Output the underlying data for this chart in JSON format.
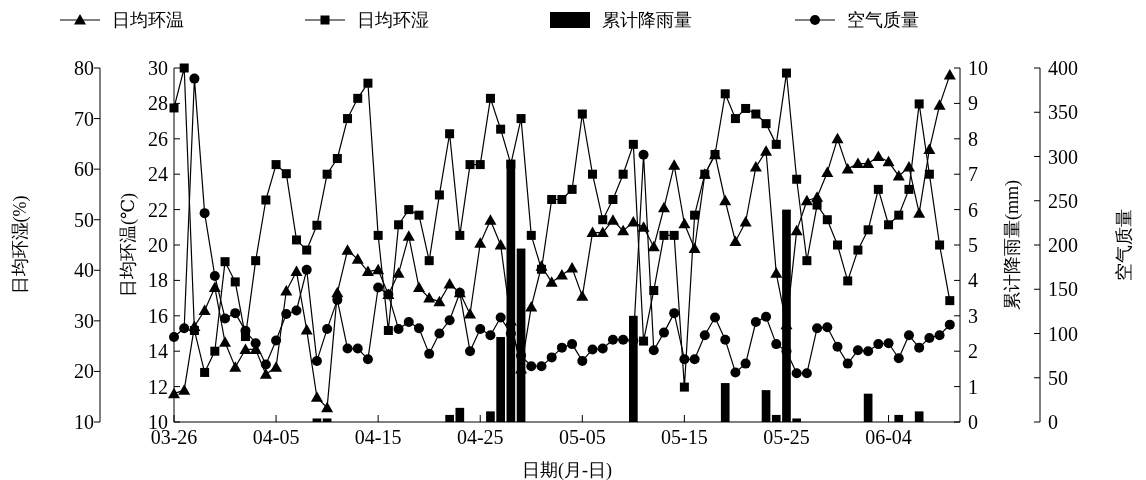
{
  "chart_data": [
    {
      "type": "line",
      "xlabel": "日期(月-日)",
      "ylabel": "日均环温(℃)",
      "y2label": "累计降雨量(mm)",
      "y3label": "日均环湿(%)",
      "x": [
        "--03-26",
        "--03-27",
        "--03-28",
        "--03-29",
        "--03-30",
        "--03-31",
        "--04-01",
        "--04-02",
        "--04-03",
        "--04-04",
        "--04-05",
        "--04-06",
        "--04-07",
        "--04-08",
        "--04-09",
        "--04-10",
        "--04-11",
        "--04-12",
        "--04-13",
        "--04-14",
        "--04-15",
        "--04-16",
        "--04-17",
        "--04-18",
        "--04-19",
        "--04-20",
        "--04-21",
        "--04-22",
        "--04-23",
        "--04-24",
        "--04-25",
        "--04-26",
        "--04-27",
        "--04-28",
        "--04-29",
        "--04-30",
        "--05-01",
        "--05-02",
        "--05-03",
        "--05-04",
        "--05-05",
        "--05-06",
        "--05-07",
        "--05-08",
        "--05-09",
        "--05-10",
        "--05-11",
        "--05-12",
        "--05-13",
        "--05-14",
        "--05-15",
        "--05-16",
        "--05-17",
        "--05-18",
        "--05-19",
        "--05-20",
        "--05-21",
        "--05-22",
        "--05-23",
        "--05-24",
        "--05-25",
        "--05-26",
        "--05-27",
        "--05-28",
        "--05-29",
        "--05-30",
        "--05-31",
        "--06-01",
        "--06-02",
        "--06-03",
        "--06-04",
        "--06-05",
        "--06-06",
        "--06-07",
        "--06-08",
        "--06-09",
        "--06-10"
      ],
      "xlim": [
        "--03-26",
        "--06-11"
      ],
      "xticks": [
        {
          "value": "--03-26",
          "label": "03-26"
        },
        {
          "value": "--04-05",
          "label": "04-05"
        },
        {
          "value": "--04-15",
          "label": "04-15"
        },
        {
          "value": "--04-25",
          "label": "04-25"
        },
        {
          "value": "--05-05",
          "label": "05-05"
        },
        {
          "value": "--05-15",
          "label": "05-15"
        },
        {
          "value": "--05-25",
          "label": "05-25"
        },
        {
          "value": "--06-04",
          "label": "06-04"
        }
      ],
      "ylim": [
        10,
        30
      ],
      "yticks": [
        10,
        12,
        14,
        16,
        18,
        20,
        22,
        24,
        26,
        28,
        30
      ],
      "y2lim": [
        0,
        10
      ],
      "y2ticks": [
        0,
        1,
        2,
        3,
        4,
        5,
        6,
        7,
        8,
        9,
        10
      ],
      "y3lim": [
        10,
        80
      ],
      "y3ticks": [
        10,
        20,
        30,
        40,
        50,
        60,
        70,
        80
      ],
      "legend": "top",
      "series": [
        {
          "name": "日均环温",
          "marker": "triangle",
          "color": "#000000",
          "values": [
            11.6,
            11.8,
            15.4,
            16.3,
            17.6,
            14.5,
            13.1,
            14.1,
            14.1,
            12.7,
            13.1,
            17.4,
            18.5,
            15.2,
            11.4,
            10.8,
            17.3,
            19.7,
            19.2,
            18.5,
            18.6,
            17.2,
            18.4,
            20.5,
            17.6,
            17.0,
            16.8,
            17.8,
            17.3,
            16.1,
            20.1,
            21.4,
            20.0,
            15.7,
            13.0,
            16.5,
            18.8,
            17.9,
            18.3,
            18.7,
            17.1,
            20.7,
            20.7,
            21.4,
            20.8,
            21.3,
            21.0,
            19.9,
            22.1,
            24.5,
            21.2,
            19.8,
            24.0,
            25.1,
            22.5,
            20.2,
            21.3,
            24.4,
            25.3,
            18.4,
            15.5,
            20.8,
            22.5,
            22.7,
            24.1,
            26.0,
            24.3,
            24.6,
            24.6,
            25.0,
            24.7,
            23.9,
            24.4,
            21.8,
            25.4,
            27.9,
            29.6
          ]
        },
        {
          "name": "日均环湿",
          "axis": "y3",
          "marker": "square",
          "color": "#000000",
          "values": [
            72.1,
            80,
            28.1,
            19.8,
            24.0,
            41.7,
            37.7,
            26.9,
            41.9,
            53.9,
            60.9,
            59.1,
            46.0,
            44.0,
            48.9,
            59.0,
            62.1,
            70.0,
            74.0,
            77.0,
            46.9,
            28.1,
            49.0,
            52.0,
            50.9,
            41.9,
            54.9,
            67.0,
            46.9,
            60.9,
            60.9,
            74.0,
            67.9,
            61.0,
            70.0,
            46.9,
            40.2,
            54.0,
            54.0,
            56.0,
            70.9,
            59.0,
            50.0,
            54.0,
            59.0,
            64.9,
            26.0,
            36.0,
            46.9,
            46.9,
            16.9,
            50.9,
            59.0,
            62.9,
            74.9,
            70.0,
            72.0,
            70.9,
            69.0,
            64.9,
            79.0,
            58.0,
            41.9,
            52.9,
            50.0,
            45.0,
            37.9,
            44.0,
            48.0,
            56.0,
            49.0,
            50.9,
            56.0,
            72.9,
            59.0,
            45.0,
            34.0
          ]
        },
        {
          "name": "累计降雨量",
          "type": "bar",
          "axis": "y2",
          "color": "#000000",
          "values": [
            null,
            null,
            null,
            null,
            null,
            null,
            null,
            null,
            null,
            null,
            null,
            null,
            null,
            null,
            0.1,
            0.1,
            null,
            null,
            null,
            null,
            null,
            null,
            null,
            null,
            null,
            null,
            null,
            0.2,
            0.4,
            null,
            null,
            0.3,
            2.4,
            7.4,
            4.9,
            null,
            null,
            null,
            null,
            null,
            null,
            null,
            null,
            null,
            null,
            3.0,
            null,
            null,
            null,
            null,
            null,
            null,
            null,
            null,
            1.1,
            null,
            null,
            null,
            0.9,
            0.2,
            6.0,
            0.1,
            null,
            null,
            null,
            null,
            null,
            null,
            0.8,
            null,
            null,
            0.2,
            null,
            0.3,
            null,
            null,
            null
          ]
        }
      ]
    },
    {
      "type": "line",
      "ylabel": "空气质量",
      "tick_labels": "y",
      "x": [
        "--03-26",
        "--03-27",
        "--03-28",
        "--03-29",
        "--03-30",
        "--03-31",
        "--04-01",
        "--04-02",
        "--04-03",
        "--04-04",
        "--04-05",
        "--04-06",
        "--04-07",
        "--04-08",
        "--04-09",
        "--04-10",
        "--04-11",
        "--04-12",
        "--04-13",
        "--04-14",
        "--04-15",
        "--04-16",
        "--04-17",
        "--04-18",
        "--04-19",
        "--04-20",
        "--04-21",
        "--04-22",
        "--04-23",
        "--04-24",
        "--04-25",
        "--04-26",
        "--04-27",
        "--04-28",
        "--04-29",
        "--04-30",
        "--05-01",
        "--05-02",
        "--05-03",
        "--05-04",
        "--05-05",
        "--05-06",
        "--05-07",
        "--05-08",
        "--05-09",
        "--05-10",
        "--05-11",
        "--05-12",
        "--05-13",
        "--05-14",
        "--05-15",
        "--05-16",
        "--05-17",
        "--05-18",
        "--05-19",
        "--05-20",
        "--05-21",
        "--05-22",
        "--05-23",
        "--05-24",
        "--05-25",
        "--05-26",
        "--05-27",
        "--05-28",
        "--05-29",
        "--05-30",
        "--05-31",
        "--06-01",
        "--06-02",
        "--06-03",
        "--06-04",
        "--06-05",
        "--06-06",
        "--06-07",
        "--06-08",
        "--06-09",
        "--06-10"
      ],
      "xlim": [
        "--03-26",
        "--06-11"
      ],
      "ylim": [
        0,
        400
      ],
      "yticks": [
        0,
        50,
        100,
        150,
        200,
        250,
        300,
        350,
        400
      ],
      "legend": "top",
      "series": [
        {
          "name": "空气质量",
          "marker": "circle",
          "color": "#000000",
          "values": [
            96,
            106,
            388,
            236,
            165,
            117,
            123,
            103,
            89,
            65,
            92,
            122,
            126,
            172,
            69,
            105,
            138,
            83,
            83,
            71,
            152,
            144,
            105,
            113,
            106,
            77,
            100,
            115,
            146,
            80,
            105,
            98,
            118,
            100,
            75,
            63,
            63,
            73,
            84,
            88,
            69,
            82,
            83,
            93,
            93,
            92,
            302,
            81,
            101,
            123,
            71,
            71,
            98,
            118,
            93,
            56,
            66,
            113,
            119,
            88,
            80,
            55,
            55,
            106,
            107,
            85,
            66,
            81,
            80,
            88,
            89,
            72,
            98,
            84,
            95,
            98,
            110
          ]
        }
      ]
    }
  ]
}
